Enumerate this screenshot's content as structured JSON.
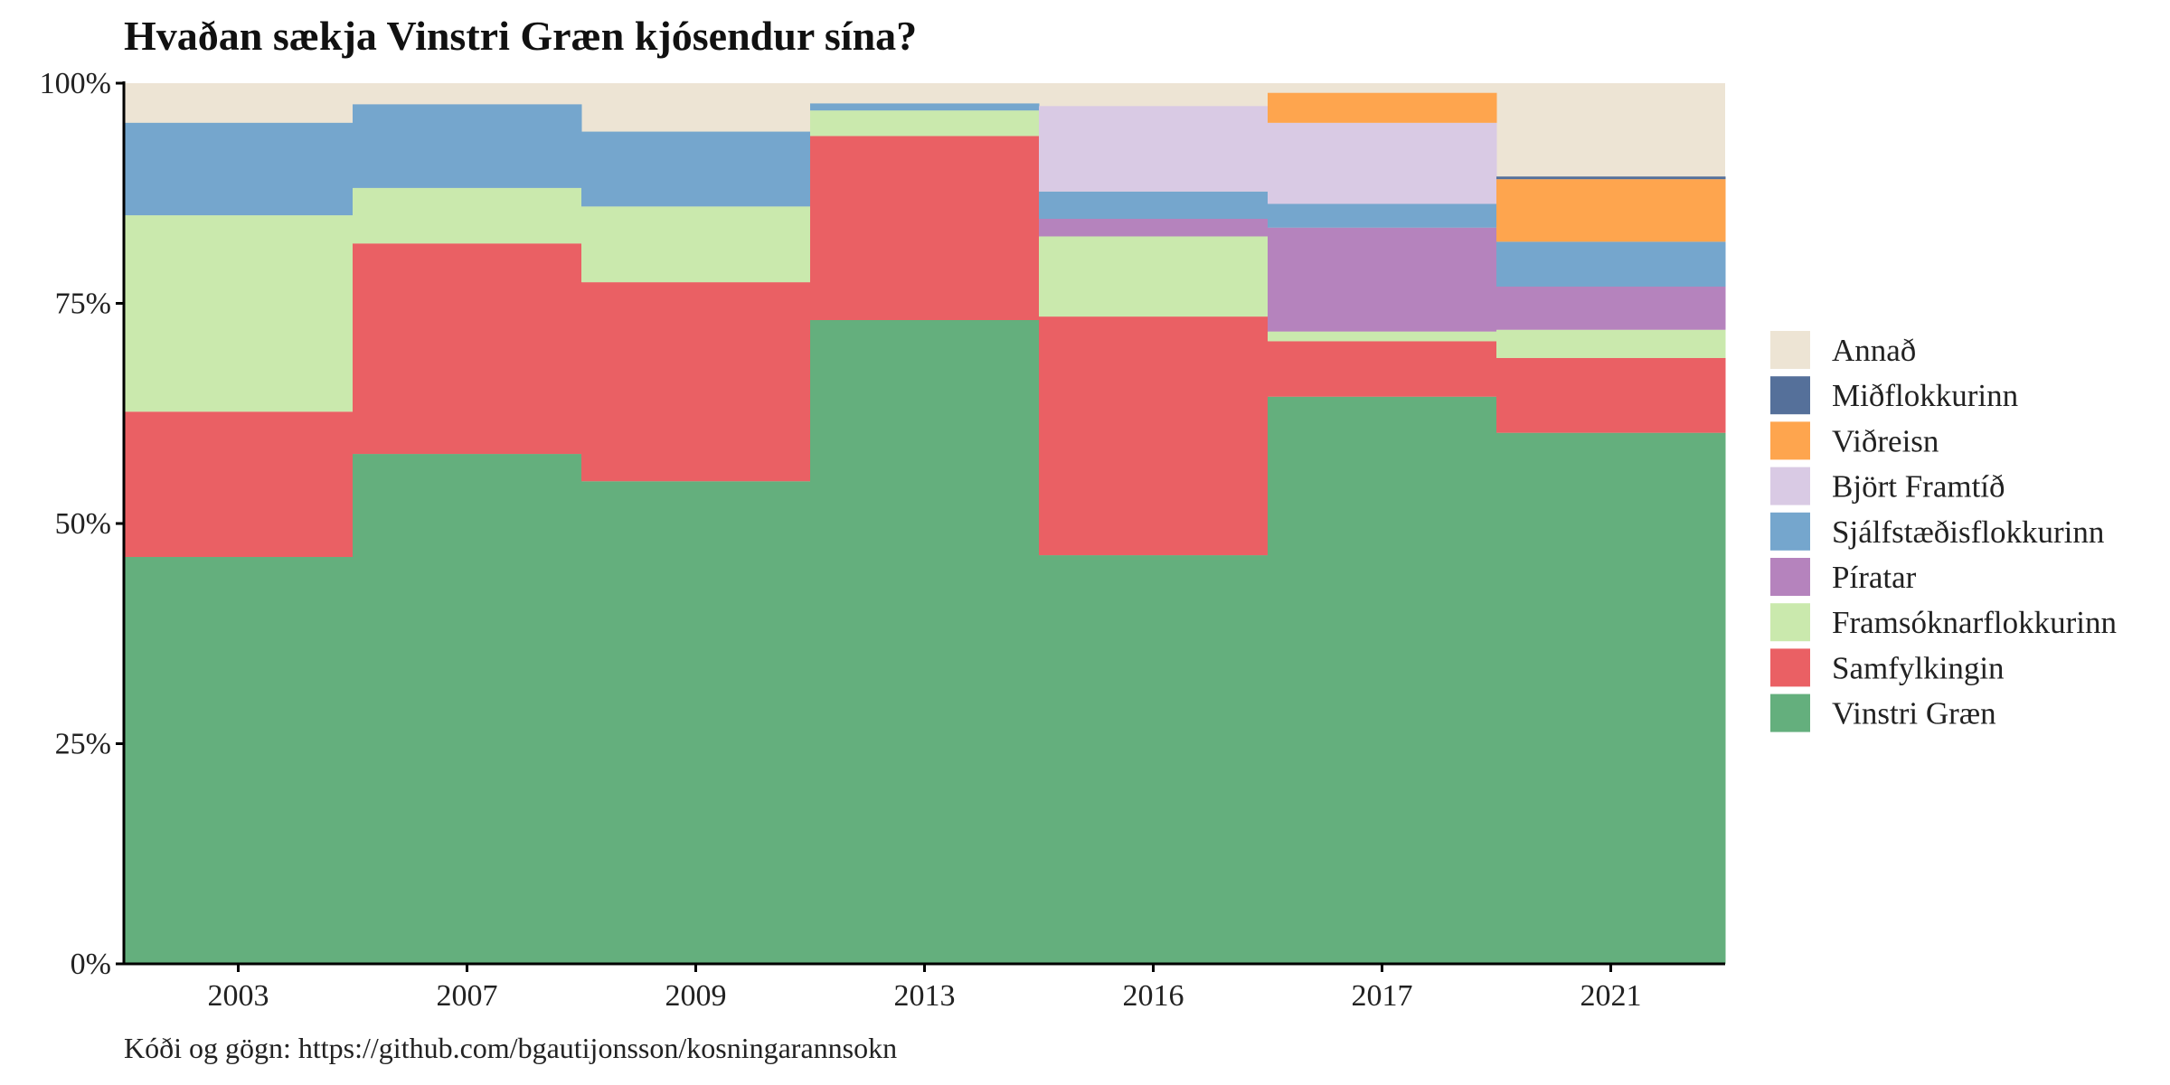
{
  "chart_data": {
    "type": "bar",
    "title": "Hvaðan sækja Vinstri Græn kjósendur sína?",
    "caption": "Kóði og gögn: https://github.com/bgautijonsson/kosningarannsokn",
    "xlabel": "",
    "ylabel": "",
    "ylim": [
      0,
      100
    ],
    "y_ticks": [
      "0%",
      "25%",
      "50%",
      "75%",
      "100%"
    ],
    "y_tick_values": [
      0,
      25,
      50,
      75,
      100
    ],
    "categories": [
      "2003",
      "2007",
      "2009",
      "2013",
      "2016",
      "2017",
      "2021"
    ],
    "stacked": true,
    "legend_position": "right",
    "background_remainder_series": "Annað",
    "series": [
      {
        "name": "Vinstri Græn",
        "color": "#64AF7D",
        "values": [
          46.2,
          57.9,
          54.8,
          73.1,
          46.4,
          64.4,
          60.3
        ]
      },
      {
        "name": "Samfylkingin",
        "color": "#EA6064",
        "values": [
          16.5,
          23.9,
          22.6,
          20.9,
          27.1,
          6.3,
          8.5
        ]
      },
      {
        "name": "Framsóknarflokkurinn",
        "color": "#CAE9AD",
        "values": [
          22.3,
          6.3,
          8.6,
          2.9,
          9.1,
          1.1,
          3.2
        ]
      },
      {
        "name": "Píratar",
        "color": "#B583BD",
        "values": [
          0,
          0,
          0,
          0,
          2.0,
          11.8,
          4.9
        ]
      },
      {
        "name": "Sjálfstæðisflokkurinn",
        "color": "#75A6CD",
        "values": [
          10.5,
          9.5,
          8.5,
          0.8,
          3.1,
          2.7,
          5.1
        ]
      },
      {
        "name": "Björt Framtíð",
        "color": "#D9CAE4",
        "values": [
          0,
          0,
          0,
          0,
          9.7,
          9.2,
          0
        ]
      },
      {
        "name": "Viðreisn",
        "color": "#FEA54E",
        "values": [
          0,
          0,
          0,
          0,
          0,
          3.4,
          7.1
        ]
      },
      {
        "name": "Miðflokkurinn",
        "color": "#55709A",
        "values": [
          0,
          0,
          0,
          0,
          0,
          0,
          0.3
        ]
      }
    ],
    "legend": [
      {
        "name": "Annað",
        "color": "#EDE4D4"
      },
      {
        "name": "Miðflokkurinn",
        "color": "#55709A"
      },
      {
        "name": "Viðreisn",
        "color": "#FEA54E"
      },
      {
        "name": "Björt Framtíð",
        "color": "#D9CAE4"
      },
      {
        "name": "Sjálfstæðisflokkurinn",
        "color": "#75A6CD"
      },
      {
        "name": "Píratar",
        "color": "#B583BD"
      },
      {
        "name": "Framsóknarflokkurinn",
        "color": "#CAE9AD"
      },
      {
        "name": "Samfylkingin",
        "color": "#EA6064"
      },
      {
        "name": "Vinstri Græn",
        "color": "#64AF7D"
      }
    ]
  }
}
